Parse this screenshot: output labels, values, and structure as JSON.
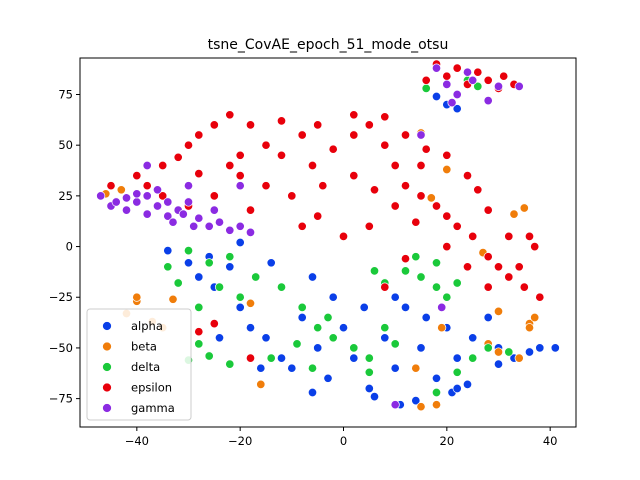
{
  "chart_data": {
    "type": "scatter",
    "title": "tsne_CovAE_epoch_51_mode_otsu",
    "xlabel": "",
    "ylabel": "",
    "xlim": [
      -51,
      45
    ],
    "ylim": [
      -89,
      93
    ],
    "xticks": [
      -40,
      -20,
      0,
      20,
      40
    ],
    "yticks": [
      -75,
      -50,
      -25,
      0,
      25,
      50,
      75
    ],
    "grid": false,
    "legend_position": "lower-left",
    "marker_edge_color": "#ffffff",
    "series": [
      {
        "name": "alpha",
        "color": "#0a3fe8",
        "points": [
          [
            -34,
            -2
          ],
          [
            -30,
            -8
          ],
          [
            -28,
            -15
          ],
          [
            -25,
            -20
          ],
          [
            -22,
            -10
          ],
          [
            -20,
            -30
          ],
          [
            -18,
            -40
          ],
          [
            -15,
            -45
          ],
          [
            -12,
            -55
          ],
          [
            -10,
            -60
          ],
          [
            -8,
            -35
          ],
          [
            -5,
            -50
          ],
          [
            -3,
            -65
          ],
          [
            0,
            -40
          ],
          [
            2,
            -55
          ],
          [
            5,
            -70
          ],
          [
            8,
            -45
          ],
          [
            10,
            -60
          ],
          [
            12,
            -30
          ],
          [
            15,
            -50
          ],
          [
            18,
            -65
          ],
          [
            20,
            -40
          ],
          [
            22,
            -55
          ],
          [
            25,
            -45
          ],
          [
            28,
            -35
          ],
          [
            30,
            -50
          ],
          [
            33,
            -55
          ],
          [
            36,
            -52
          ],
          [
            38,
            -50
          ],
          [
            41,
            -50
          ],
          [
            -26,
            -5
          ],
          [
            -20,
            2
          ],
          [
            -14,
            -8
          ],
          [
            -6,
            -15
          ],
          [
            -2,
            -25
          ],
          [
            4,
            -30
          ],
          [
            10,
            -25
          ],
          [
            16,
            -35
          ],
          [
            -24,
            -45
          ],
          [
            -16,
            -60
          ],
          [
            -6,
            -72
          ],
          [
            6,
            -74
          ],
          [
            14,
            -76
          ],
          [
            21,
            -72
          ],
          [
            24,
            -68
          ],
          [
            30,
            -58
          ],
          [
            22,
            -70
          ],
          [
            11,
            -78
          ],
          [
            20,
            70
          ],
          [
            22,
            68
          ],
          [
            18,
            74
          ]
        ]
      },
      {
        "name": "beta",
        "color": "#f07d0a",
        "points": [
          [
            -40,
            -27
          ],
          [
            -33,
            -26
          ],
          [
            -37,
            -37
          ],
          [
            -42,
            -33
          ],
          [
            -40,
            -25
          ],
          [
            -35,
            -40
          ],
          [
            -16,
            -68
          ],
          [
            15,
            -79
          ],
          [
            18,
            -78
          ],
          [
            36,
            -38
          ],
          [
            37,
            -35
          ],
          [
            36,
            -40
          ],
          [
            30,
            -52
          ],
          [
            28,
            -48
          ],
          [
            34,
            -55
          ],
          [
            19,
            -40
          ],
          [
            20,
            38
          ],
          [
            17,
            24
          ],
          [
            27,
            -3
          ],
          [
            33,
            16
          ],
          [
            35,
            19
          ],
          [
            -46,
            26
          ],
          [
            -43,
            28
          ],
          [
            15,
            56
          ],
          [
            14,
            -60
          ],
          [
            -18,
            -28
          ],
          [
            30,
            -32
          ]
        ]
      },
      {
        "name": "delta",
        "color": "#1ac93a",
        "points": [
          [
            -30,
            -2
          ],
          [
            -26,
            -8
          ],
          [
            -22,
            -5
          ],
          [
            -24,
            -20
          ],
          [
            -20,
            -25
          ],
          [
            -17,
            -15
          ],
          [
            -12,
            -20
          ],
          [
            -8,
            -30
          ],
          [
            -5,
            -40
          ],
          [
            -2,
            -45
          ],
          [
            2,
            -50
          ],
          [
            5,
            -55
          ],
          [
            8,
            -40
          ],
          [
            10,
            -48
          ],
          [
            12,
            -12
          ],
          [
            15,
            -15
          ],
          [
            18,
            -20
          ],
          [
            20,
            -25
          ],
          [
            22,
            -18
          ],
          [
            18,
            -8
          ],
          [
            14,
            -5
          ],
          [
            6,
            -12
          ],
          [
            8,
            -18
          ],
          [
            25,
            -55
          ],
          [
            28,
            -50
          ],
          [
            32,
            -52
          ],
          [
            22,
            -62
          ],
          [
            18,
            -72
          ],
          [
            -28,
            -48
          ],
          [
            -26,
            -54
          ],
          [
            -30,
            -56
          ],
          [
            -22,
            -58
          ],
          [
            -6,
            -60
          ],
          [
            5,
            -62
          ],
          [
            -14,
            -55
          ],
          [
            -9,
            -48
          ],
          [
            -3,
            -35
          ],
          [
            -34,
            -10
          ],
          [
            -32,
            -18
          ],
          [
            -28,
            -30
          ],
          [
            24,
            82
          ],
          [
            26,
            79
          ],
          [
            16,
            78
          ]
        ]
      },
      {
        "name": "epsilon",
        "color": "#e8000b",
        "points": [
          [
            -45,
            30
          ],
          [
            -40,
            35
          ],
          [
            -35,
            40
          ],
          [
            -30,
            50
          ],
          [
            -28,
            55
          ],
          [
            -25,
            60
          ],
          [
            -22,
            65
          ],
          [
            -18,
            60
          ],
          [
            -15,
            50
          ],
          [
            -12,
            45
          ],
          [
            -8,
            55
          ],
          [
            -5,
            60
          ],
          [
            -2,
            48
          ],
          [
            2,
            55
          ],
          [
            5,
            60
          ],
          [
            8,
            50
          ],
          [
            10,
            40
          ],
          [
            12,
            30
          ],
          [
            15,
            25
          ],
          [
            18,
            20
          ],
          [
            20,
            15
          ],
          [
            22,
            10
          ],
          [
            25,
            5
          ],
          [
            28,
            -5
          ],
          [
            30,
            -10
          ],
          [
            32,
            -15
          ],
          [
            35,
            -20
          ],
          [
            38,
            -25
          ],
          [
            37,
            0
          ],
          [
            32,
            5
          ],
          [
            28,
            18
          ],
          [
            26,
            28
          ],
          [
            24,
            35
          ],
          [
            20,
            45
          ],
          [
            15,
            40
          ],
          [
            10,
            20
          ],
          [
            5,
            10
          ],
          [
            0,
            5
          ],
          [
            -5,
            15
          ],
          [
            -10,
            25
          ],
          [
            -15,
            30
          ],
          [
            -20,
            35
          ],
          [
            -25,
            25
          ],
          [
            -30,
            20
          ],
          [
            -35,
            25
          ],
          [
            -38,
            30
          ],
          [
            -20,
            45
          ],
          [
            -12,
            62
          ],
          [
            2,
            65
          ],
          [
            -32,
            44
          ],
          [
            -28,
            36
          ],
          [
            -18,
            18
          ],
          [
            -8,
            10
          ],
          [
            -22,
            40
          ],
          [
            -4,
            30
          ],
          [
            6,
            28
          ],
          [
            14,
            12
          ],
          [
            16,
            48
          ],
          [
            28,
            -20
          ],
          [
            -28,
            -42
          ],
          [
            -25,
            -38
          ],
          [
            -18,
            -55
          ],
          [
            16,
            82
          ],
          [
            20,
            84
          ],
          [
            24,
            80
          ],
          [
            28,
            82
          ],
          [
            30,
            78
          ],
          [
            33,
            80
          ],
          [
            18,
            90
          ],
          [
            22,
            88
          ],
          [
            26,
            86
          ],
          [
            31,
            84
          ],
          [
            8,
            64
          ],
          [
            12,
            55
          ],
          [
            -6,
            40
          ],
          [
            2,
            35
          ],
          [
            20,
            0
          ],
          [
            24,
            -10
          ],
          [
            34,
            -10
          ],
          [
            36,
            5
          ],
          [
            12,
            -6
          ],
          [
            8,
            -20
          ]
        ]
      },
      {
        "name": "gamma",
        "color": "#8b2be2",
        "points": [
          [
            -47,
            25
          ],
          [
            -45,
            20
          ],
          [
            -42,
            18
          ],
          [
            -40,
            22
          ],
          [
            -38,
            25
          ],
          [
            -36,
            20
          ],
          [
            -34,
            15
          ],
          [
            -32,
            18
          ],
          [
            -30,
            22
          ],
          [
            -28,
            14
          ],
          [
            -26,
            10
          ],
          [
            -24,
            12
          ],
          [
            -22,
            8
          ],
          [
            -20,
            10
          ],
          [
            -18,
            7
          ],
          [
            -36,
            28
          ],
          [
            -40,
            26
          ],
          [
            -44,
            22
          ],
          [
            -33,
            12
          ],
          [
            -29,
            10
          ],
          [
            -38,
            16
          ],
          [
            18,
            88
          ],
          [
            20,
            80
          ],
          [
            22,
            75
          ],
          [
            25,
            82
          ],
          [
            28,
            72
          ],
          [
            30,
            79
          ],
          [
            34,
            79
          ],
          [
            21,
            71
          ],
          [
            24,
            86
          ],
          [
            10,
            -78
          ],
          [
            19,
            -30
          ],
          [
            15,
            55
          ],
          [
            -38,
            40
          ],
          [
            -30,
            30
          ],
          [
            -20,
            30
          ],
          [
            -25,
            18
          ],
          [
            -42,
            24
          ],
          [
            -34,
            22
          ],
          [
            -31,
            16
          ]
        ]
      }
    ]
  }
}
